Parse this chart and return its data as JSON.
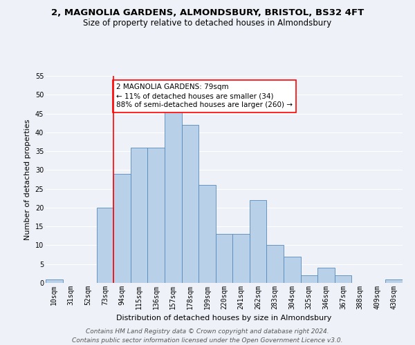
{
  "title1": "2, MAGNOLIA GARDENS, ALMONDSBURY, BRISTOL, BS32 4FT",
  "title2": "Size of property relative to detached houses in Almondsbury",
  "xlabel": "Distribution of detached houses by size in Almondsbury",
  "ylabel": "Number of detached properties",
  "bar_labels": [
    "10sqm",
    "31sqm",
    "52sqm",
    "73sqm",
    "94sqm",
    "115sqm",
    "136sqm",
    "157sqm",
    "178sqm",
    "199sqm",
    "220sqm",
    "241sqm",
    "262sqm",
    "283sqm",
    "304sqm",
    "325sqm",
    "346sqm",
    "367sqm",
    "388sqm",
    "409sqm",
    "430sqm"
  ],
  "bar_values": [
    1,
    0,
    0,
    20,
    29,
    36,
    36,
    46,
    42,
    26,
    13,
    13,
    22,
    10,
    7,
    2,
    4,
    2,
    0,
    0,
    1
  ],
  "bar_color": "#b8d0e8",
  "bar_edge_color": "#5588bb",
  "vline_color": "red",
  "vline_x": 3.5,
  "annotation_text": "2 MAGNOLIA GARDENS: 79sqm\n← 11% of detached houses are smaller (34)\n88% of semi-detached houses are larger (260) →",
  "annotation_box_color": "white",
  "annotation_box_edge_color": "red",
  "ylim": [
    0,
    55
  ],
  "yticks": [
    0,
    5,
    10,
    15,
    20,
    25,
    30,
    35,
    40,
    45,
    50,
    55
  ],
  "footer": "Contains HM Land Registry data © Crown copyright and database right 2024.\nContains public sector information licensed under the Open Government Licence v3.0.",
  "bg_color": "#eef2f8",
  "grid_color": "white",
  "title_fontsize": 9.5,
  "subtitle_fontsize": 8.5,
  "axis_label_fontsize": 8,
  "tick_fontsize": 7,
  "footer_fontsize": 6.5,
  "annotation_fontsize": 7.5
}
